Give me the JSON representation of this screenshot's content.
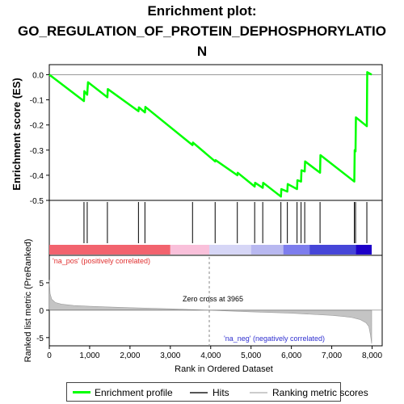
{
  "title_lines": [
    "Enrichment plot:",
    "GO_REGULATION_OF_PROTEIN_DEPHOSPHORYLATIO",
    "N"
  ],
  "chart_data": {
    "type": "line",
    "top_panel": {
      "ylabel": "Enrichment score (ES)",
      "ylim": [
        -0.5,
        0.04
      ],
      "yticks": [
        "0.0",
        "-0.1",
        "-0.2",
        "-0.3",
        "-0.4",
        "-0.5"
      ],
      "ytick_values": [
        0.0,
        -0.1,
        -0.2,
        -0.3,
        -0.4,
        -0.5
      ],
      "series": [
        {
          "name": "Enrichment profile",
          "color": "#00ff00",
          "x": [
            0,
            860,
            870,
            940,
            960,
            1440,
            1450,
            2210,
            2220,
            2370,
            2380,
            3550,
            3560,
            4110,
            4120,
            4660,
            4670,
            5090,
            5100,
            5290,
            5300,
            5740,
            5750,
            5900,
            5910,
            6140,
            6150,
            6240,
            6250,
            6330,
            6340,
            6710,
            6720,
            7560,
            7570,
            7590,
            7600,
            7870,
            7880,
            7990
          ],
          "y": [
            0.0,
            -0.105,
            -0.065,
            -0.08,
            -0.03,
            -0.09,
            -0.057,
            -0.145,
            -0.13,
            -0.15,
            -0.128,
            -0.28,
            -0.27,
            -0.345,
            -0.34,
            -0.4,
            -0.39,
            -0.445,
            -0.43,
            -0.45,
            -0.43,
            -0.485,
            -0.455,
            -0.465,
            -0.435,
            -0.455,
            -0.42,
            -0.425,
            -0.38,
            -0.385,
            -0.345,
            -0.39,
            -0.32,
            -0.425,
            -0.3,
            -0.305,
            -0.17,
            -0.205,
            0.01,
            0.0
          ]
        }
      ]
    },
    "hits": [
      860,
      940,
      1440,
      2210,
      2370,
      3550,
      4110,
      4660,
      5090,
      5290,
      5740,
      5900,
      6140,
      6240,
      6330,
      6710,
      7560,
      7590,
      7870
    ],
    "bottom_panel": {
      "ylabel": "Ranked list metric (PreRanked)",
      "xlabel": "Rank in Ordered Dataset",
      "ylim": [
        -6.5,
        10
      ],
      "yticks": [
        "5",
        "0",
        "-5"
      ],
      "ytick_values": [
        5,
        0,
        -5
      ],
      "xlim": [
        0,
        8250
      ],
      "xticks": [
        "0",
        "1,000",
        "2,000",
        "3,000",
        "4,000",
        "5,000",
        "6,000",
        "7,000",
        "8,000"
      ],
      "xtick_values": [
        0,
        1000,
        2000,
        3000,
        4000,
        5000,
        6000,
        7000,
        8000
      ],
      "metric_curve": {
        "x": [
          0,
          20,
          60,
          150,
          300,
          600,
          1000,
          2000,
          3000,
          3965,
          5000,
          6000,
          6500,
          7000,
          7300,
          7500,
          7700,
          7850,
          7920,
          7960,
          7990
        ],
        "y": [
          5.5,
          3.0,
          2.0,
          1.4,
          1.1,
          0.85,
          0.7,
          0.45,
          0.25,
          0.0,
          -0.3,
          -0.55,
          -0.75,
          -0.95,
          -1.15,
          -1.35,
          -1.7,
          -2.3,
          -3.0,
          -4.5,
          -6.1
        ]
      },
      "zero_cross_label": "Zero cross at 3965",
      "zero_cross": 3965,
      "pos_label": "'na_pos' (positively correlated)",
      "neg_label": "'na_neg' (negatively correlated)"
    },
    "color_bar": [
      {
        "from": 0,
        "to": 3000,
        "color": "#f2636e"
      },
      {
        "from": 3000,
        "to": 3965,
        "color": "#f9c0da"
      },
      {
        "from": 3965,
        "to": 5000,
        "color": "#d6d6f6"
      },
      {
        "from": 5000,
        "to": 5800,
        "color": "#b8b8f0"
      },
      {
        "from": 5800,
        "to": 6450,
        "color": "#7d7ded"
      },
      {
        "from": 6450,
        "to": 7600,
        "color": "#4646d8"
      },
      {
        "from": 7600,
        "to": 7990,
        "color": "#1d00c8"
      }
    ],
    "legend": {
      "items": [
        {
          "label": "Enrichment profile",
          "color": "#00ff00"
        },
        {
          "label": "Hits",
          "color": "#555555"
        },
        {
          "label": "Ranking metric scores",
          "color": "#cccccc"
        }
      ]
    }
  }
}
